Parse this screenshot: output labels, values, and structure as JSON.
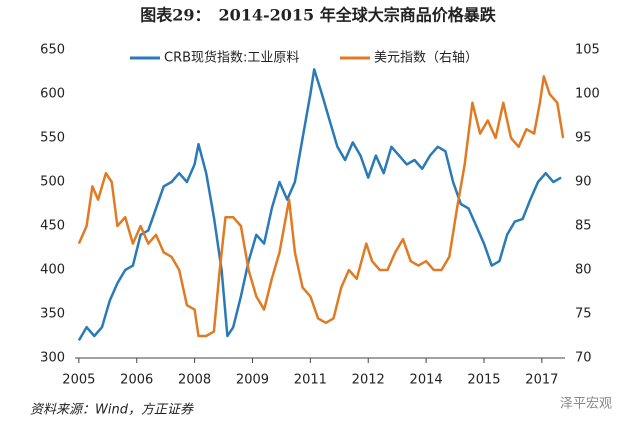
{
  "chart_data": {
    "type": "line",
    "title": "图表29：　2014-2015 年全球大宗商品价格暴跌",
    "source": "资料来源：Wind，方正证券",
    "watermark": "泽平宏观",
    "xlim": [
      2004.9,
      2017.6
    ],
    "xticks": [
      {
        "value": 2005,
        "label": "2005"
      },
      {
        "value": 2006.5,
        "label": "2006"
      },
      {
        "value": 2008,
        "label": "2008"
      },
      {
        "value": 2009.5,
        "label": "2009"
      },
      {
        "value": 2011,
        "label": "2011"
      },
      {
        "value": 2012.5,
        "label": "2012"
      },
      {
        "value": 2014,
        "label": "2014"
      },
      {
        "value": 2015.5,
        "label": "2015"
      },
      {
        "value": 2017,
        "label": "2017"
      }
    ],
    "ylim": [
      300,
      650
    ],
    "yticks": [
      300,
      350,
      400,
      450,
      500,
      550,
      600,
      650
    ],
    "y2lim": [
      70,
      105
    ],
    "y2ticks": [
      70,
      75,
      80,
      85,
      90,
      95,
      100,
      105
    ],
    "grid": false,
    "legend": "top",
    "series": [
      {
        "name": "CRB现货指数:工业原料",
        "color": "#2a7ab8",
        "x": [
          2005.0,
          2005.2,
          2005.4,
          2005.6,
          2005.8,
          2006.0,
          2006.2,
          2006.4,
          2006.6,
          2006.8,
          2007.0,
          2007.2,
          2007.4,
          2007.6,
          2007.8,
          2008.0,
          2008.1,
          2008.3,
          2008.5,
          2008.7,
          2008.85,
          2009.0,
          2009.2,
          2009.4,
          2009.6,
          2009.8,
          2010.0,
          2010.2,
          2010.4,
          2010.6,
          2010.8,
          2011.0,
          2011.1,
          2011.3,
          2011.5,
          2011.7,
          2011.9,
          2012.1,
          2012.3,
          2012.5,
          2012.7,
          2012.9,
          2013.1,
          2013.3,
          2013.5,
          2013.7,
          2013.9,
          2014.1,
          2014.3,
          2014.5,
          2014.7,
          2014.9,
          2015.1,
          2015.3,
          2015.5,
          2015.7,
          2015.9,
          2016.1,
          2016.3,
          2016.5,
          2016.7,
          2016.9,
          2017.1,
          2017.3,
          2017.5
        ],
        "values": [
          320,
          335,
          325,
          335,
          365,
          385,
          400,
          405,
          440,
          445,
          470,
          495,
          500,
          510,
          500,
          520,
          543,
          510,
          460,
          400,
          325,
          335,
          370,
          410,
          440,
          430,
          470,
          500,
          480,
          500,
          550,
          600,
          628,
          600,
          570,
          540,
          525,
          545,
          530,
          505,
          530,
          510,
          540,
          530,
          520,
          525,
          515,
          530,
          540,
          535,
          500,
          475,
          470,
          450,
          430,
          405,
          410,
          440,
          455,
          458,
          480,
          500,
          510,
          500,
          505
        ]
      },
      {
        "name": "美元指数（右轴）",
        "color": "#e07b24",
        "axis": "y2",
        "x": [
          2005.0,
          2005.2,
          2005.35,
          2005.5,
          2005.7,
          2005.85,
          2006.0,
          2006.2,
          2006.4,
          2006.6,
          2006.8,
          2007.0,
          2007.2,
          2007.4,
          2007.6,
          2007.8,
          2008.0,
          2008.1,
          2008.3,
          2008.5,
          2008.65,
          2008.8,
          2009.0,
          2009.2,
          2009.4,
          2009.6,
          2009.8,
          2010.0,
          2010.2,
          2010.45,
          2010.6,
          2010.8,
          2011.0,
          2011.2,
          2011.4,
          2011.6,
          2011.8,
          2012.0,
          2012.2,
          2012.45,
          2012.6,
          2012.8,
          2013.0,
          2013.2,
          2013.4,
          2013.6,
          2013.8,
          2014.0,
          2014.2,
          2014.4,
          2014.6,
          2014.8,
          2015.0,
          2015.2,
          2015.4,
          2015.6,
          2015.8,
          2016.0,
          2016.2,
          2016.4,
          2016.6,
          2016.8,
          2016.95,
          2017.05,
          2017.2,
          2017.4,
          2017.55
        ],
        "values": [
          83,
          85,
          89.5,
          88,
          91,
          90,
          85,
          86,
          83,
          85,
          83,
          84,
          82,
          81.5,
          80,
          76,
          75.5,
          72.5,
          72.5,
          73,
          80,
          86,
          86,
          85,
          80,
          77,
          75.5,
          79,
          82,
          88,
          82,
          78,
          77,
          74.5,
          74,
          74.5,
          78,
          80,
          79,
          83,
          81,
          80,
          80,
          82,
          83.5,
          81,
          80.5,
          81,
          80,
          80,
          81.5,
          87,
          92,
          99,
          95.5,
          97,
          95,
          99,
          95,
          94,
          96,
          95.5,
          99,
          102,
          100,
          99,
          95
        ]
      }
    ]
  }
}
